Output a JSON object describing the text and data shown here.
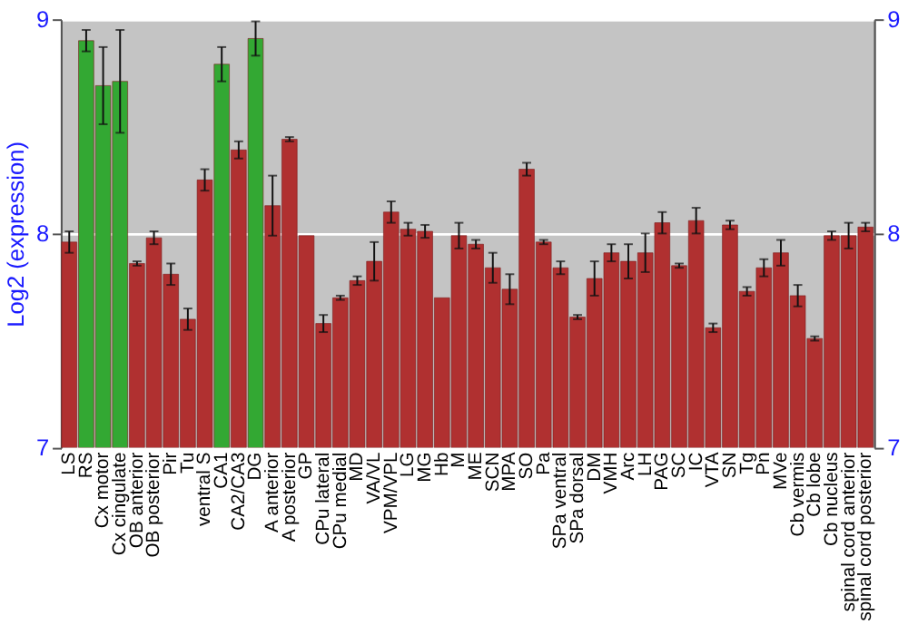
{
  "chart_data": {
    "type": "bar",
    "ylabel": "Log2 (expression)",
    "categories": [
      "LS",
      "RS",
      "Cx motor",
      "Cx cingulate",
      "OB anterior",
      "OB posterior",
      "Pir",
      "Tu",
      "ventral S",
      "CA1",
      "CA2/CA3",
      "DG",
      "A anterior",
      "A posterior",
      "GP",
      "CPu lateral",
      "CPu medial",
      "MD",
      "VA/VL",
      "VPM/VPL",
      "LG",
      "MG",
      "Hb",
      "M",
      "ME",
      "SCN",
      "MPA",
      "SO",
      "Pa",
      "SPa ventral",
      "SPa dorsal",
      "DM",
      "VMH",
      "Arc",
      "LH",
      "PAG",
      "SC",
      "IC",
      "VTA",
      "SN",
      "Tg",
      "Pn",
      "MVe",
      "Cb vermis",
      "Cb lobe",
      "Cb nucleus",
      "spinal cord anterior",
      "spinal cord posterior"
    ],
    "values": [
      7.96,
      8.9,
      8.69,
      8.71,
      7.86,
      7.98,
      7.81,
      7.6,
      8.25,
      8.79,
      8.39,
      8.91,
      8.13,
      8.44,
      7.99,
      7.58,
      7.7,
      7.78,
      7.87,
      8.1,
      8.02,
      8.01,
      7.7,
      7.99,
      7.95,
      7.84,
      7.74,
      8.3,
      7.96,
      7.84,
      7.61,
      7.79,
      7.91,
      7.87,
      7.91,
      8.05,
      7.85,
      8.06,
      7.56,
      8.04,
      7.73,
      7.84,
      7.91,
      7.71,
      7.51,
      7.99,
      7.99,
      8.03
    ],
    "errors": [
      0.05,
      0.05,
      0.18,
      0.24,
      0.01,
      0.03,
      0.05,
      0.05,
      0.05,
      0.08,
      0.04,
      0.08,
      0.14,
      0.01,
      null,
      0.04,
      0.01,
      0.02,
      0.09,
      0.05,
      0.03,
      0.03,
      null,
      0.06,
      0.02,
      0.07,
      0.07,
      0.03,
      0.01,
      0.03,
      0.01,
      0.08,
      0.04,
      0.08,
      0.09,
      0.05,
      0.01,
      0.06,
      0.02,
      0.02,
      0.02,
      0.04,
      0.06,
      0.05,
      0.01,
      0.02,
      0.06,
      0.02
    ],
    "colors": [
      "#b03030",
      "#33a833",
      "#33a833",
      "#33a833",
      "#b03030",
      "#b03030",
      "#b03030",
      "#b03030",
      "#b03030",
      "#33a833",
      "#b03030",
      "#33a833",
      "#b03030",
      "#b03030",
      "#b03030",
      "#b03030",
      "#b03030",
      "#b03030",
      "#b03030",
      "#b03030",
      "#b03030",
      "#b03030",
      "#b03030",
      "#b03030",
      "#b03030",
      "#b03030",
      "#b03030",
      "#b03030",
      "#b03030",
      "#b03030",
      "#b03030",
      "#b03030",
      "#b03030",
      "#b03030",
      "#b03030",
      "#b03030",
      "#b03030",
      "#b03030",
      "#b03030",
      "#b03030",
      "#b03030",
      "#b03030",
      "#b03030",
      "#b03030",
      "#b03030",
      "#b03030",
      "#b03030",
      "#b03030"
    ],
    "ylim": [
      7,
      9
    ],
    "yticks": [
      7,
      8,
      9
    ],
    "y2lim": [
      7,
      9
    ],
    "y2ticks": [
      7,
      8,
      9
    ],
    "grid": "y"
  }
}
